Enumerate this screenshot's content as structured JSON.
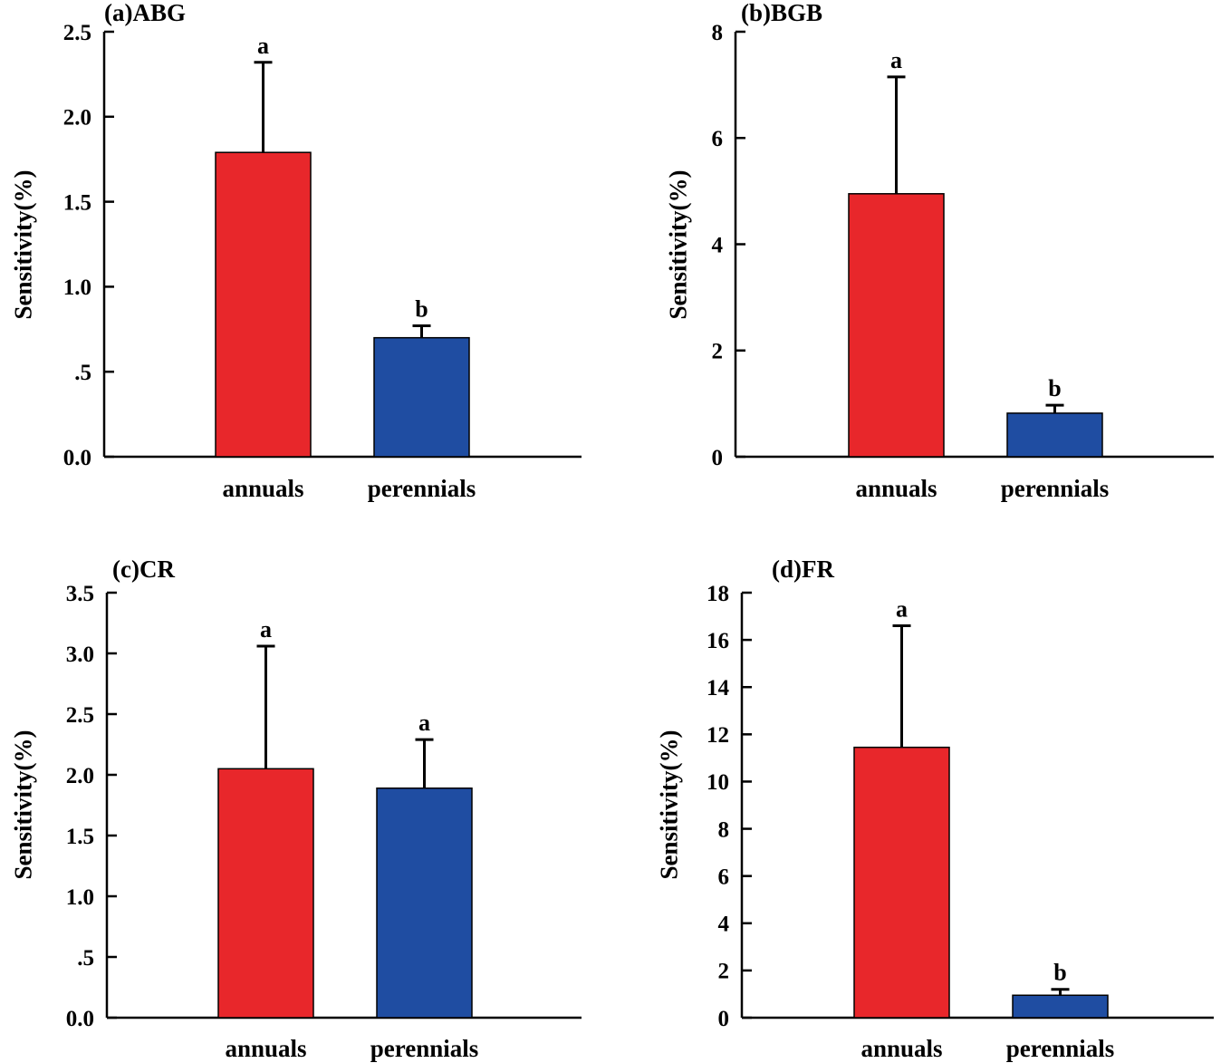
{
  "colors": {
    "annuals": "#e8272b",
    "perennials": "#1f4da2"
  },
  "chart_data": [
    {
      "type": "bar",
      "title": "(a)ABG",
      "ylabel": "Sensitivity(%)",
      "xlabel": "",
      "categories": [
        "annuals",
        "perennials"
      ],
      "values": [
        1.79,
        0.7
      ],
      "errors": [
        0.53,
        0.07
      ],
      "significance": [
        "a",
        "b"
      ],
      "ylim": [
        0,
        2.5
      ],
      "yticks": [
        0,
        0.5,
        1.0,
        1.5,
        2.0,
        2.5
      ],
      "ytick_labels": [
        "0.0",
        ".5",
        "1.0",
        "1.5",
        "2.0",
        "2.5"
      ]
    },
    {
      "type": "bar",
      "title": "(b)BGB",
      "ylabel": "Sensitivity(%)",
      "xlabel": "",
      "categories": [
        "annuals",
        "perennials"
      ],
      "values": [
        4.95,
        0.82
      ],
      "errors": [
        2.2,
        0.15
      ],
      "significance": [
        "a",
        "b"
      ],
      "ylim": [
        0,
        8
      ],
      "yticks": [
        0,
        2,
        4,
        6,
        8
      ],
      "ytick_labels": [
        "0",
        "2",
        "4",
        "6",
        "8"
      ]
    },
    {
      "type": "bar",
      "title": "(c)CR",
      "ylabel": "Sensitivity(%)",
      "xlabel": "",
      "categories": [
        "annuals",
        "perennials"
      ],
      "values": [
        2.05,
        1.89
      ],
      "errors": [
        1.01,
        0.4
      ],
      "significance": [
        "a",
        "a"
      ],
      "ylim": [
        0,
        3.5
      ],
      "yticks": [
        0,
        0.5,
        1.0,
        1.5,
        2.0,
        2.5,
        3.0,
        3.5
      ],
      "ytick_labels": [
        "0.0",
        ".5",
        "1.0",
        "1.5",
        "2.0",
        "2.5",
        "3.0",
        "3.5"
      ]
    },
    {
      "type": "bar",
      "title": "(d)FR",
      "ylabel": "Sensitivity(%)",
      "xlabel": "",
      "categories": [
        "annuals",
        "perennials"
      ],
      "values": [
        11.45,
        0.95
      ],
      "errors": [
        5.15,
        0.25
      ],
      "significance": [
        "a",
        "b"
      ],
      "ylim": [
        0,
        18
      ],
      "yticks": [
        0,
        2,
        4,
        6,
        8,
        10,
        12,
        14,
        16,
        18
      ],
      "ytick_labels": [
        "0",
        "2",
        "4",
        "6",
        "8",
        "10",
        "12",
        "14",
        "16",
        "18"
      ]
    }
  ]
}
